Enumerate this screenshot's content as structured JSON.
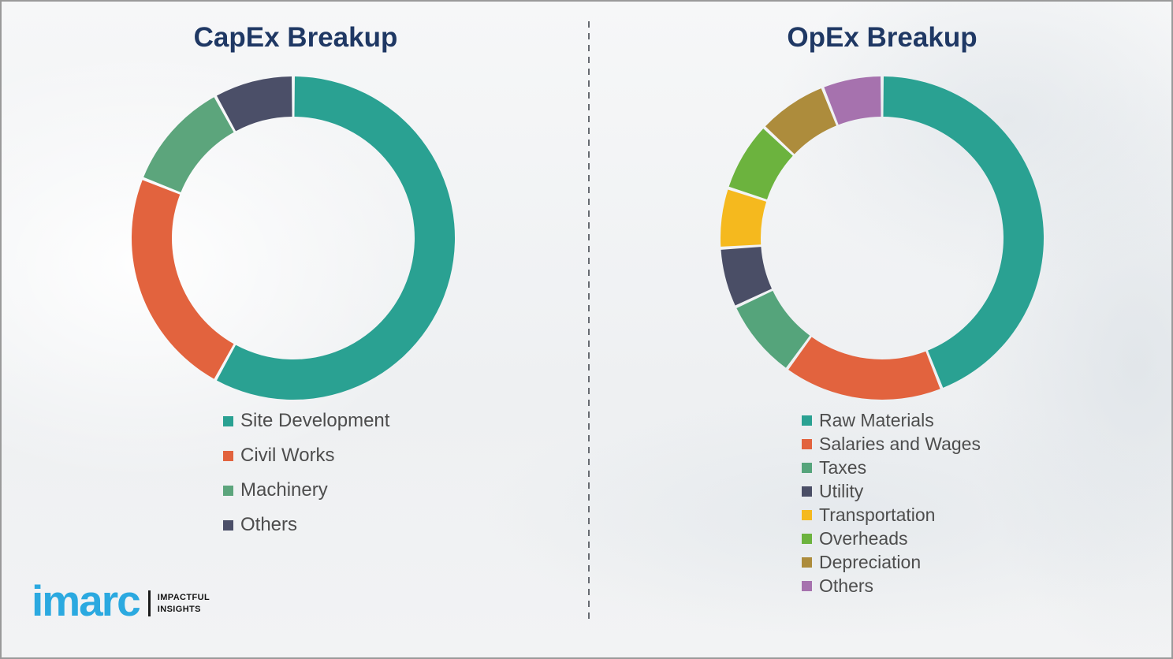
{
  "chart_data": [
    {
      "type": "donut",
      "title": "CapEx Breakup",
      "unit": "percent",
      "start_angle_deg": 0,
      "direction": "clockwise",
      "legend_position": "below-left",
      "labels": [
        "Site Development",
        "Civil Works",
        "Machinery",
        "Others"
      ],
      "values": [
        58,
        23,
        11,
        8
      ],
      "colors": [
        "#2AA192",
        "#E2633E",
        "#5CA57C",
        "#4B4F68"
      ]
    },
    {
      "type": "donut",
      "title": "OpEx Breakup",
      "unit": "percent",
      "start_angle_deg": 0,
      "direction": "clockwise",
      "legend_position": "below-left",
      "labels": [
        "Raw Materials",
        "Salaries and Wages",
        "Taxes",
        "Utility",
        "Transportation",
        "Overheads",
        "Depreciation",
        "Others"
      ],
      "values": [
        44,
        16,
        8,
        6,
        6,
        7,
        7,
        6
      ],
      "colors": [
        "#2AA192",
        "#E2633E",
        "#55A47B",
        "#4A4E66",
        "#F5B91E",
        "#6CB33E",
        "#AD8C3C",
        "#A672AE"
      ]
    }
  ],
  "logo": {
    "brand": "imarc",
    "brand_color": "#2BA9E0",
    "tagline_line1": "IMPACTFUL",
    "tagline_line2": "INSIGHTS"
  },
  "styles": {
    "title_color": "#1F3864",
    "legend_text_color": "#4d4d4d",
    "divider_color": "#666a70",
    "background_color": "#eff1f2"
  }
}
